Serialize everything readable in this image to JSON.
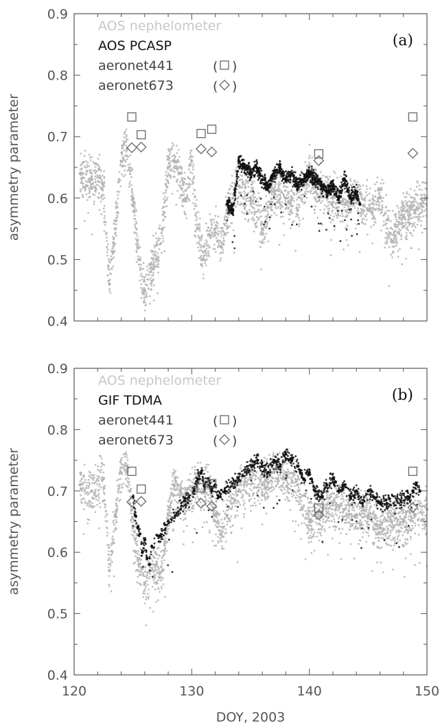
{
  "figure": {
    "xlabel": "DOY, 2003",
    "colors": {
      "grey": "#b4b4b4",
      "black": "#111111",
      "axis": "#555555",
      "marker": "#666666"
    }
  },
  "chart_data": [
    {
      "type": "scatter",
      "panel_label": "(a)",
      "xlabel": "",
      "ylabel": "asymmetry parameter",
      "xlim": [
        120,
        150
      ],
      "ylim": [
        0.4,
        0.9
      ],
      "xticks": [
        120,
        130,
        140,
        150
      ],
      "yticks": [
        0.4,
        0.5,
        0.6,
        0.7,
        0.8,
        0.9
      ],
      "show_xtick_labels": false,
      "legend_position": "top-left",
      "series": [
        {
          "name": "AOS nephelometer",
          "color": "#b4b4b4",
          "marker": "dot",
          "x": [
            120.5,
            121.5,
            122.5,
            123.0,
            123.5,
            124.0,
            124.5,
            125.0,
            125.5,
            126.0,
            126.5,
            127.0,
            127.5,
            128.0,
            128.5,
            129.0,
            129.5,
            130.0,
            130.5,
            131.0,
            131.5,
            132.0,
            132.5,
            133.0,
            133.5,
            134.0,
            135.0,
            136.0,
            137.0,
            138.0,
            139.0,
            140.0,
            140.5,
            141.0,
            142.0,
            143.0,
            144.0,
            145.0,
            146.0,
            147.0,
            148.0,
            149.0,
            150.0
          ],
          "y": [
            0.64,
            0.63,
            0.62,
            0.46,
            0.55,
            0.66,
            0.68,
            0.6,
            0.5,
            0.45,
            0.48,
            0.5,
            0.55,
            0.65,
            0.66,
            0.64,
            0.6,
            0.66,
            0.55,
            0.5,
            0.54,
            0.55,
            0.52,
            0.58,
            0.6,
            0.62,
            0.6,
            0.55,
            0.61,
            0.6,
            0.58,
            0.65,
            0.61,
            0.62,
            0.6,
            0.59,
            0.6,
            0.58,
            0.6,
            0.53,
            0.57,
            0.58,
            0.6
          ]
        },
        {
          "name": "AOS PCASP",
          "color": "#111111",
          "marker": "dot",
          "x": [
            133.0,
            133.5,
            134.0,
            134.5,
            135.0,
            135.5,
            136.0,
            136.5,
            137.0,
            137.5,
            138.0,
            138.5,
            139.0,
            139.5,
            140.0,
            140.5,
            141.0,
            141.5,
            142.0,
            142.5,
            143.0,
            143.5,
            144.0,
            144.3
          ],
          "y": [
            0.59,
            0.58,
            0.66,
            0.65,
            0.64,
            0.65,
            0.63,
            0.62,
            0.64,
            0.65,
            0.63,
            0.64,
            0.62,
            0.63,
            0.64,
            0.63,
            0.62,
            0.61,
            0.62,
            0.6,
            0.63,
            0.6,
            0.61,
            0.59
          ]
        },
        {
          "name": "aeronet441",
          "color": "#666666",
          "marker": "square",
          "x": [
            124.9,
            125.7,
            130.8,
            131.7,
            140.8,
            148.8
          ],
          "y": [
            0.732,
            0.703,
            0.705,
            0.712,
            0.672,
            0.732
          ]
        },
        {
          "name": "aeronet673",
          "color": "#666666",
          "marker": "diamond",
          "x": [
            124.9,
            125.7,
            130.8,
            131.7,
            140.8,
            148.8
          ],
          "y": [
            0.682,
            0.683,
            0.68,
            0.675,
            0.661,
            0.673
          ]
        }
      ]
    },
    {
      "type": "scatter",
      "panel_label": "(b)",
      "xlabel": "DOY, 2003",
      "ylabel": "asymmetry parameter",
      "xlim": [
        120,
        150
      ],
      "ylim": [
        0.4,
        0.9
      ],
      "xticks": [
        120,
        130,
        140,
        150
      ],
      "yticks": [
        0.4,
        0.5,
        0.6,
        0.7,
        0.8,
        0.9
      ],
      "show_xtick_labels": true,
      "legend_position": "top-left",
      "series": [
        {
          "name": "AOS nephelometer",
          "color": "#b4b4b4",
          "marker": "dot",
          "x": [
            120.5,
            121.5,
            122.5,
            123.0,
            123.5,
            124.0,
            124.5,
            125.0,
            125.5,
            126.0,
            126.5,
            127.0,
            127.5,
            128.0,
            128.5,
            129.0,
            129.5,
            130.0,
            130.5,
            131.0,
            131.5,
            132.0,
            132.5,
            133.0,
            134.0,
            135.0,
            136.0,
            137.0,
            138.0,
            139.0,
            140.0,
            140.5,
            141.0,
            142.0,
            143.0,
            144.0,
            145.0,
            146.0,
            147.0,
            148.0,
            149.0,
            150.0
          ],
          "y": [
            0.71,
            0.7,
            0.72,
            0.57,
            0.66,
            0.73,
            0.74,
            0.64,
            0.58,
            0.55,
            0.57,
            0.58,
            0.57,
            0.66,
            0.71,
            0.7,
            0.68,
            0.7,
            0.72,
            0.7,
            0.71,
            0.66,
            0.63,
            0.66,
            0.7,
            0.72,
            0.71,
            0.73,
            0.72,
            0.71,
            0.65,
            0.66,
            0.66,
            0.68,
            0.67,
            0.66,
            0.66,
            0.64,
            0.65,
            0.65,
            0.66,
            0.67
          ]
        },
        {
          "name": "GIF TDMA",
          "color": "#111111",
          "marker": "dot",
          "x": [
            125.0,
            125.2,
            125.4,
            125.6,
            125.8,
            126.0,
            126.2,
            126.4,
            126.6,
            130.2,
            130.5,
            130.8,
            131.1,
            131.4,
            131.7,
            132.0,
            132.3,
            135.6,
            136.0,
            136.5,
            137.0,
            137.5,
            138.0,
            138.5,
            139.0,
            139.5,
            140.0,
            140.5,
            141.0,
            141.5,
            142.0,
            142.5,
            143.0,
            143.5,
            144.0,
            144.5,
            145.0,
            145.5,
            146.0,
            148.5,
            148.8,
            149.1,
            149.4
          ],
          "y": [
            0.69,
            0.66,
            0.64,
            0.63,
            0.6,
            0.62,
            0.59,
            0.58,
            0.61,
            0.7,
            0.72,
            0.73,
            0.71,
            0.72,
            0.7,
            0.71,
            0.69,
            0.75,
            0.74,
            0.73,
            0.75,
            0.74,
            0.76,
            0.75,
            0.74,
            0.72,
            0.73,
            0.7,
            0.69,
            0.71,
            0.72,
            0.7,
            0.71,
            0.69,
            0.7,
            0.68,
            0.7,
            0.69,
            0.68,
            0.69,
            0.7,
            0.71,
            0.7
          ]
        },
        {
          "name": "aeronet441",
          "color": "#666666",
          "marker": "square",
          "x": [
            124.9,
            125.7,
            130.8,
            131.7,
            140.8,
            148.8
          ],
          "y": [
            0.732,
            0.703,
            0.705,
            0.712,
            0.672,
            0.732
          ]
        },
        {
          "name": "aeronet673",
          "color": "#666666",
          "marker": "diamond",
          "x": [
            124.9,
            125.7,
            130.8,
            131.7,
            140.8,
            148.8
          ],
          "y": [
            0.682,
            0.683,
            0.68,
            0.675,
            0.661,
            0.673
          ]
        }
      ]
    }
  ]
}
